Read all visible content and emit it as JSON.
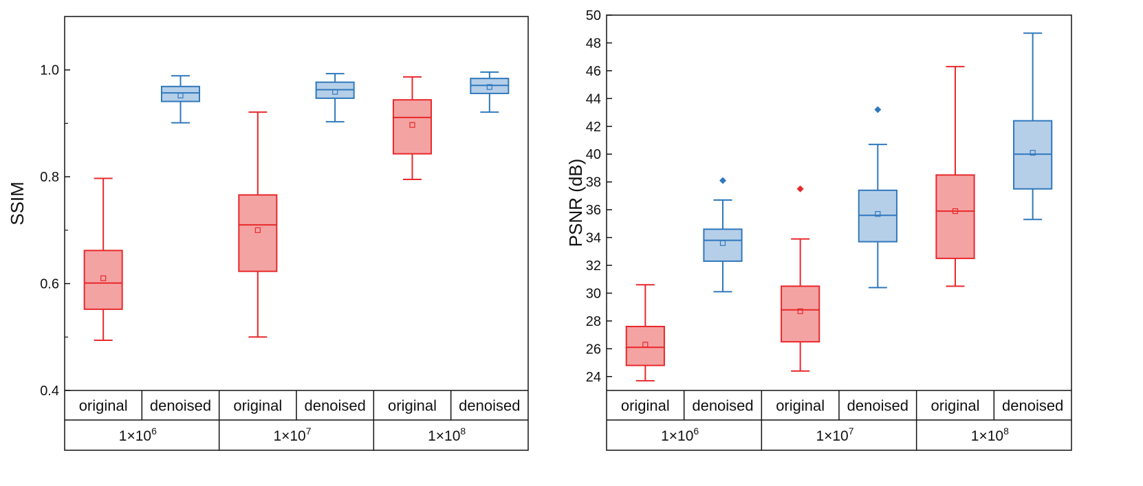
{
  "colors": {
    "original_stroke": "#e8282b",
    "original_fill": "#f4a3a3",
    "denoised_stroke": "#2f78bd",
    "denoised_fill": "#b6cfe8",
    "axis": "#111111"
  },
  "chart_data": [
    {
      "type": "box",
      "ylabel": "SSIM",
      "ylim": [
        0.4,
        1.1
      ],
      "yticks": [
        0.4,
        0.6,
        0.8,
        1.0
      ],
      "ytick_labels": [
        "0.4",
        "0.6",
        "0.8",
        "1.0"
      ],
      "minor_ticks": [
        0.5,
        0.7,
        0.9
      ],
      "groups": [
        {
          "label": "1×10",
          "exp": "6"
        },
        {
          "label": "1×10",
          "exp": "7"
        },
        {
          "label": "1×10",
          "exp": "8"
        }
      ],
      "categories": [
        "original",
        "denoised",
        "original",
        "denoised",
        "original",
        "denoised"
      ],
      "boxes": [
        {
          "series": "original",
          "min": 0.494,
          "q1": 0.552,
          "median": 0.601,
          "q3": 0.662,
          "max": 0.797,
          "mean": 0.61,
          "outliers": []
        },
        {
          "series": "denoised",
          "min": 0.901,
          "q1": 0.941,
          "median": 0.957,
          "q3": 0.969,
          "max": 0.989,
          "mean": 0.952,
          "outliers": []
        },
        {
          "series": "original",
          "min": 0.5,
          "q1": 0.623,
          "median": 0.71,
          "q3": 0.766,
          "max": 0.921,
          "mean": 0.7,
          "outliers": []
        },
        {
          "series": "denoised",
          "min": 0.903,
          "q1": 0.947,
          "median": 0.963,
          "q3": 0.977,
          "max": 0.993,
          "mean": 0.959,
          "outliers": []
        },
        {
          "series": "original",
          "min": 0.795,
          "q1": 0.843,
          "median": 0.911,
          "q3": 0.944,
          "max": 0.987,
          "mean": 0.897,
          "outliers": []
        },
        {
          "series": "denoised",
          "min": 0.921,
          "q1": 0.956,
          "median": 0.971,
          "q3": 0.984,
          "max": 0.996,
          "mean": 0.968,
          "outliers": []
        }
      ]
    },
    {
      "type": "box",
      "ylabel": "PSNR (dB)",
      "ylim": [
        23,
        50
      ],
      "yticks": [
        24,
        26,
        28,
        30,
        32,
        34,
        36,
        38,
        40,
        42,
        44,
        46,
        48,
        50
      ],
      "ytick_labels": [
        "24",
        "26",
        "28",
        "30",
        "32",
        "34",
        "36",
        "38",
        "40",
        "42",
        "44",
        "46",
        "48",
        "50"
      ],
      "minor_ticks": [],
      "groups": [
        {
          "label": "1×10",
          "exp": "6"
        },
        {
          "label": "1×10",
          "exp": "7"
        },
        {
          "label": "1×10",
          "exp": "8"
        }
      ],
      "categories": [
        "original",
        "denoised",
        "original",
        "denoised",
        "original",
        "denoised"
      ],
      "boxes": [
        {
          "series": "original",
          "min": 23.7,
          "q1": 24.8,
          "median": 26.1,
          "q3": 27.6,
          "max": 30.6,
          "mean": 26.3,
          "outliers": []
        },
        {
          "series": "denoised",
          "min": 30.1,
          "q1": 32.3,
          "median": 33.8,
          "q3": 34.6,
          "max": 36.7,
          "mean": 33.6,
          "outliers": [
            38.1
          ]
        },
        {
          "series": "original",
          "min": 24.4,
          "q1": 26.5,
          "median": 28.8,
          "q3": 30.5,
          "max": 33.9,
          "mean": 28.7,
          "outliers": [
            37.5
          ]
        },
        {
          "series": "denoised",
          "min": 30.4,
          "q1": 33.7,
          "median": 35.6,
          "q3": 37.4,
          "max": 40.7,
          "mean": 35.7,
          "outliers": [
            43.2
          ]
        },
        {
          "series": "original",
          "min": 30.5,
          "q1": 32.5,
          "median": 35.9,
          "q3": 38.5,
          "max": 46.3,
          "mean": 35.9,
          "outliers": []
        },
        {
          "series": "denoised",
          "min": 35.3,
          "q1": 37.5,
          "median": 40.0,
          "q3": 42.4,
          "max": 48.7,
          "mean": 40.1,
          "outliers": []
        }
      ]
    }
  ]
}
